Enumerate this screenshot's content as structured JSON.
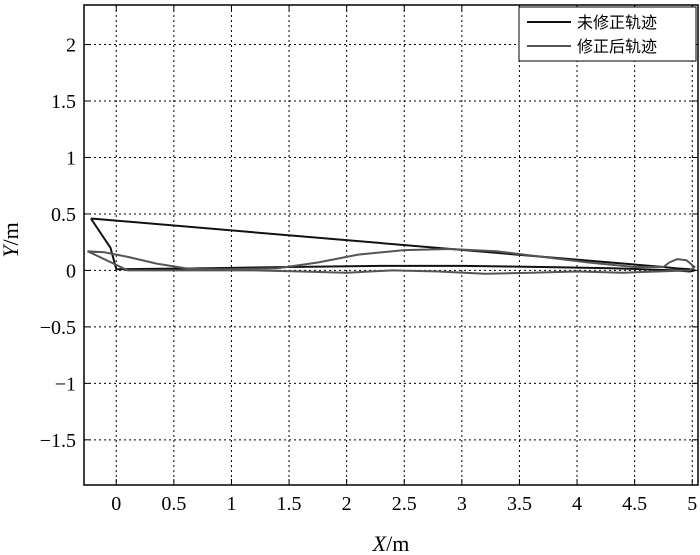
{
  "chart_data": {
    "type": "line",
    "xlabel_var": "X",
    "xlabel_unit": "/m",
    "ylabel_var": "Y",
    "ylabel_unit": "/m",
    "xlim": [
      -0.28,
      5.05
    ],
    "ylim": [
      -1.9,
      2.35
    ],
    "x_ticks": [
      0,
      0.5,
      1,
      1.5,
      2,
      2.5,
      3,
      3.5,
      4,
      4.5,
      5
    ],
    "x_tick_labels": [
      "0",
      "0.5",
      "1",
      "1.5",
      "2",
      "2.5",
      "3",
      "3.5",
      "4",
      "4.5",
      "5"
    ],
    "y_ticks": [
      -1.5,
      -1,
      -0.5,
      0,
      0.5,
      1,
      1.5,
      2
    ],
    "y_tick_labels": [
      "−1.5",
      "−1",
      "−0.5",
      "0",
      "0.5",
      "1",
      "1.5",
      "2"
    ],
    "grid": true,
    "legend_position": "top-right",
    "series": [
      {
        "name": "未修正轨迹",
        "color": "#111111",
        "x": [
          -0.22,
          4.75,
          4.85,
          4.98,
          5.02,
          4.98,
          4.85,
          4.3,
          3.7,
          3.0,
          2.3,
          1.5,
          0.8,
          0.0,
          -0.05,
          -0.22
        ],
        "y": [
          0.46,
          0.03,
          0.02,
          0.01,
          0.0,
          -0.01,
          0.0,
          0.02,
          0.03,
          0.04,
          0.04,
          0.03,
          0.02,
          0.01,
          0.2,
          0.46
        ]
      },
      {
        "name": "修正后轨迹",
        "color": "#555555",
        "x": [
          -0.25,
          -0.1,
          0.1,
          0.35,
          0.6,
          0.75,
          1.0,
          1.4,
          1.75,
          2.1,
          2.5,
          2.9,
          3.3,
          3.7,
          4.1,
          4.5,
          4.75,
          4.8,
          4.87,
          4.95,
          5.02,
          4.98,
          4.7,
          4.4,
          4.0,
          3.6,
          3.2,
          2.8,
          2.4,
          2.0,
          1.6,
          1.2,
          0.8,
          0.4,
          0.1,
          -0.25
        ],
        "y": [
          0.17,
          0.16,
          0.12,
          0.06,
          0.02,
          0.01,
          0.01,
          0.02,
          0.07,
          0.14,
          0.18,
          0.19,
          0.17,
          0.12,
          0.07,
          0.03,
          0.03,
          0.07,
          0.1,
          0.09,
          0.03,
          0.0,
          -0.01,
          -0.02,
          -0.01,
          -0.02,
          -0.03,
          -0.01,
          0.0,
          -0.02,
          -0.01,
          0.0,
          0.0,
          0.0,
          0.0,
          0.17
        ]
      }
    ]
  }
}
